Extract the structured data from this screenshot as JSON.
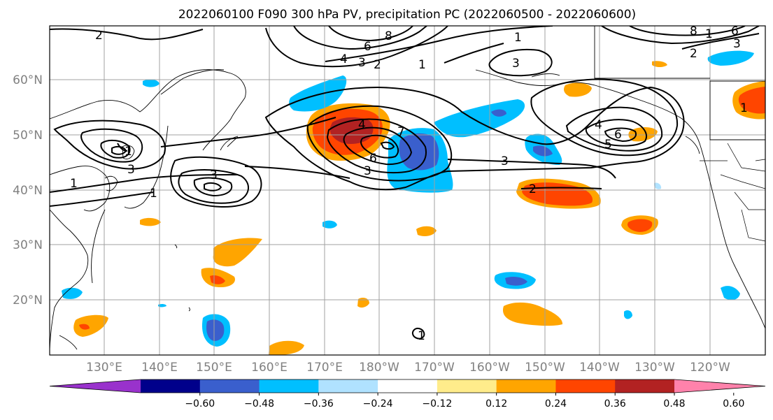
{
  "title": "2022060100 F090 300 hPa PV, precipitation PC (2022060500 - 2022060600)",
  "lat_labels": [
    "60°N",
    "50°N",
    "40°N",
    "30°N",
    "20°N"
  ],
  "lon_labels": [
    "130°E",
    "140°E",
    "150°E",
    "160°E",
    "170°E",
    "180°W",
    "170°W",
    "160°W",
    "150°W",
    "140°W",
    "130°W",
    "120°W"
  ],
  "colorbar": {
    "colors": [
      "#9932cc",
      "#00008b",
      "#3a5fcd",
      "#00bfff",
      "#b0e2ff",
      "#ffffff",
      "#ffec8b",
      "#ffa500",
      "#ff4500",
      "#b22222",
      "#ff82ab"
    ],
    "ticks": [
      "−0.60",
      "−0.48",
      "−0.36",
      "−0.24",
      "−0.12",
      "0.12",
      "0.24",
      "0.36",
      "0.48",
      "0.60"
    ]
  },
  "contour_labels": [
    "2",
    "6",
    "8",
    "1",
    "4",
    "3",
    "2",
    "1",
    "3",
    "1",
    "8",
    "6",
    "3",
    "2",
    "4",
    "7",
    "6",
    "3",
    "3",
    "3",
    "2",
    "4",
    "5",
    "6",
    "3",
    "1",
    "1",
    "1",
    "1",
    "1"
  ]
}
